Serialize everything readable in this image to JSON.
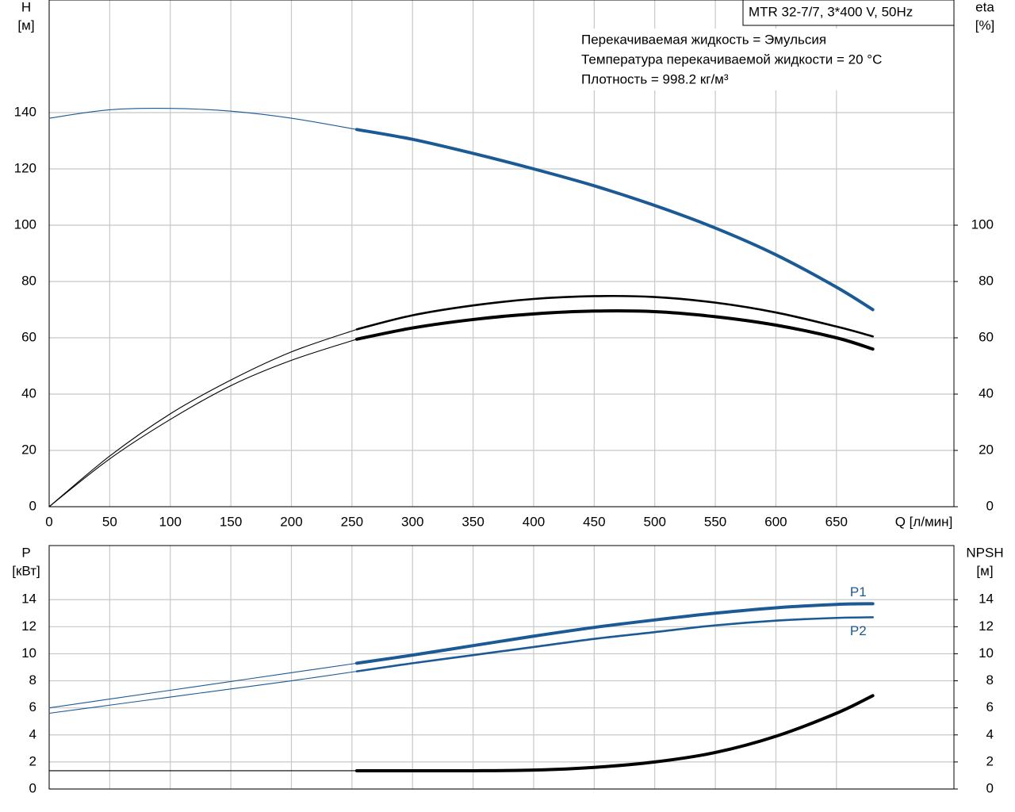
{
  "chart_data": [
    {
      "type": "line",
      "title": "MTR 32-7/7, 3*400 V, 50Hz",
      "annotations": [
        "Перекачиваемая жидкость = Эмульсия",
        "Температура перекачиваемой жидкости = 20 °C",
        "Плотность = 998.2 кг/м³"
      ],
      "y_label": "H",
      "y_unit": "[м]",
      "y2_label": "eta",
      "y2_unit": "[%]",
      "x_label": "Q [л/мин]",
      "x": [
        0,
        50,
        100,
        150,
        200,
        254,
        300,
        350,
        400,
        450,
        500,
        550,
        600,
        650,
        680
      ],
      "xlim": [
        0,
        747
      ],
      "xticks": [
        0,
        50,
        100,
        150,
        200,
        250,
        300,
        350,
        400,
        450,
        500,
        550,
        600,
        650
      ],
      "xtick_labels": true,
      "ylim": [
        0,
        180
      ],
      "yticks": [
        0,
        20,
        40,
        60,
        80,
        100,
        120,
        140
      ],
      "y2lim": [
        0,
        180
      ],
      "y2ticks": [
        0,
        20,
        40,
        60,
        80,
        100
      ],
      "grid": true,
      "series": [
        {
          "color": "#1b5a94",
          "line": "thin",
          "values": [
            138,
            141,
            141.5,
            140.5,
            138,
            134,
            null,
            null,
            null,
            null,
            null,
            null,
            null,
            null,
            null
          ]
        },
        {
          "color": "#1b5a94",
          "line": "bold",
          "values": [
            null,
            null,
            null,
            null,
            null,
            134,
            130.5,
            125.5,
            120,
            114,
            107,
            99,
            89.5,
            78,
            70
          ]
        },
        {
          "color": "#000000",
          "line": "thin",
          "axis": "y2",
          "values": [
            0,
            18,
            33,
            45,
            55,
            63,
            null,
            null,
            null,
            null,
            null,
            null,
            null,
            null,
            null
          ]
        },
        {
          "color": "#000000",
          "line": "medium",
          "axis": "y2",
          "values": [
            null,
            null,
            null,
            null,
            null,
            63,
            68,
            71.5,
            73.8,
            74.8,
            74.5,
            72.5,
            69,
            64,
            60.5
          ]
        },
        {
          "color": "#000000",
          "line": "thin",
          "axis": "y2",
          "values": [
            0,
            17,
            31,
            43,
            52,
            59.5,
            null,
            null,
            null,
            null,
            null,
            null,
            null,
            null,
            null
          ]
        },
        {
          "color": "#000000",
          "line": "bold",
          "axis": "y2",
          "values": [
            null,
            null,
            null,
            null,
            null,
            59.5,
            63.5,
            66.5,
            68.5,
            69.5,
            69.3,
            67.5,
            64.5,
            60,
            56
          ]
        }
      ]
    },
    {
      "type": "line",
      "y_label": "P",
      "y_unit": "[кВт]",
      "y2_label": "NPSH",
      "y2_unit": "[м]",
      "x": [
        0,
        50,
        100,
        150,
        200,
        254,
        300,
        350,
        400,
        450,
        500,
        550,
        600,
        650,
        680
      ],
      "xlim": [
        0,
        747
      ],
      "xticks": [
        0,
        50,
        100,
        150,
        200,
        250,
        300,
        350,
        400,
        450,
        500,
        550,
        600,
        650
      ],
      "xtick_labels": false,
      "ylim": [
        0,
        18
      ],
      "yticks": [
        0,
        2,
        4,
        6,
        8,
        10,
        12,
        14
      ],
      "y2lim": [
        0,
        18
      ],
      "y2ticks": [
        0,
        2,
        4,
        6,
        8,
        10,
        12,
        14
      ],
      "grid": true,
      "series": [
        {
          "color": "#1b5a94",
          "line": "thin",
          "values": [
            6.0,
            6.65,
            7.3,
            7.95,
            8.6,
            9.3,
            null,
            null,
            null,
            null,
            null,
            null,
            null,
            null,
            null
          ]
        },
        {
          "name": "P1",
          "label_side": "above",
          "color": "#1b5a94",
          "line": "bold",
          "values": [
            null,
            null,
            null,
            null,
            null,
            9.3,
            9.9,
            10.6,
            11.3,
            11.95,
            12.5,
            13.0,
            13.4,
            13.65,
            13.7
          ]
        },
        {
          "color": "#1b5a94",
          "line": "thin",
          "values": [
            5.6,
            6.2,
            6.8,
            7.4,
            8.0,
            8.7,
            null,
            null,
            null,
            null,
            null,
            null,
            null,
            null,
            null
          ]
        },
        {
          "name": "P2",
          "label_side": "below",
          "color": "#1b5a94",
          "line": "medium",
          "values": [
            null,
            null,
            null,
            null,
            null,
            8.7,
            9.3,
            9.9,
            10.5,
            11.1,
            11.6,
            12.1,
            12.45,
            12.65,
            12.7
          ]
        },
        {
          "color": "#000000",
          "line": "thin",
          "axis": "y2",
          "values": [
            1.35,
            1.35,
            1.35,
            1.35,
            1.35,
            1.35,
            null,
            null,
            null,
            null,
            null,
            null,
            null,
            null,
            null
          ]
        },
        {
          "color": "#000000",
          "line": "bold",
          "axis": "y2",
          "values": [
            null,
            null,
            null,
            null,
            null,
            1.35,
            1.35,
            1.35,
            1.4,
            1.6,
            2.0,
            2.7,
            3.9,
            5.6,
            6.9
          ]
        }
      ]
    }
  ]
}
